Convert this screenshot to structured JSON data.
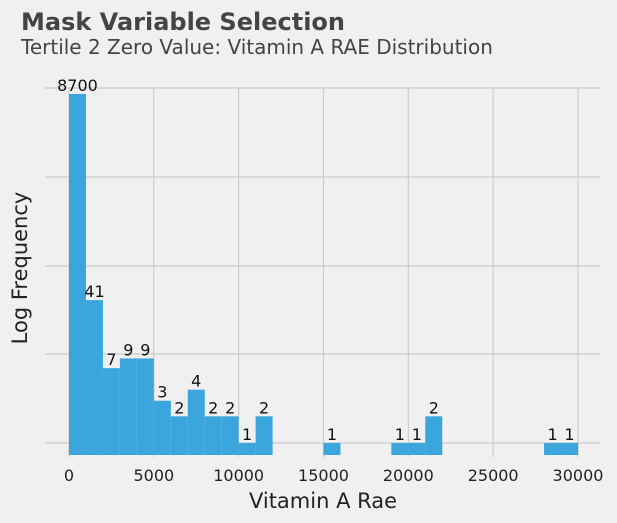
{
  "chart_data": {
    "type": "bar",
    "title": "Mask Variable Selection",
    "subtitle": "Tertile 2 Zero Value: Vitamin A RAE Distribution",
    "xlabel": "Vitamin A Rae",
    "ylabel": "Log Frequency",
    "x_ticks": [
      0,
      5000,
      10000,
      15000,
      20000,
      25000,
      30000
    ],
    "xlim": [
      -1500,
      31000
    ],
    "y_scale": "log",
    "y_tick_labels_visible": false,
    "grid": true,
    "bar_color": "#3aa6dc",
    "bins": [
      {
        "start": 0,
        "end": 1000,
        "count": 8700
      },
      {
        "start": 1000,
        "end": 2000,
        "count": 41
      },
      {
        "start": 2000,
        "end": 3000,
        "count": 7
      },
      {
        "start": 3000,
        "end": 4000,
        "count": 9
      },
      {
        "start": 4000,
        "end": 5000,
        "count": 9
      },
      {
        "start": 5000,
        "end": 6000,
        "count": 3
      },
      {
        "start": 6000,
        "end": 7000,
        "count": 2
      },
      {
        "start": 7000,
        "end": 8000,
        "count": 4
      },
      {
        "start": 8000,
        "end": 9000,
        "count": 2
      },
      {
        "start": 9000,
        "end": 10000,
        "count": 2
      },
      {
        "start": 10000,
        "end": 11000,
        "count": 1
      },
      {
        "start": 11000,
        "end": 12000,
        "count": 2
      },
      {
        "start": 15000,
        "end": 16000,
        "count": 1
      },
      {
        "start": 19000,
        "end": 20000,
        "count": 1
      },
      {
        "start": 20000,
        "end": 21000,
        "count": 1
      },
      {
        "start": 21000,
        "end": 22000,
        "count": 2
      },
      {
        "start": 28000,
        "end": 29000,
        "count": 1
      },
      {
        "start": 29000,
        "end": 30000,
        "count": 1
      }
    ]
  }
}
